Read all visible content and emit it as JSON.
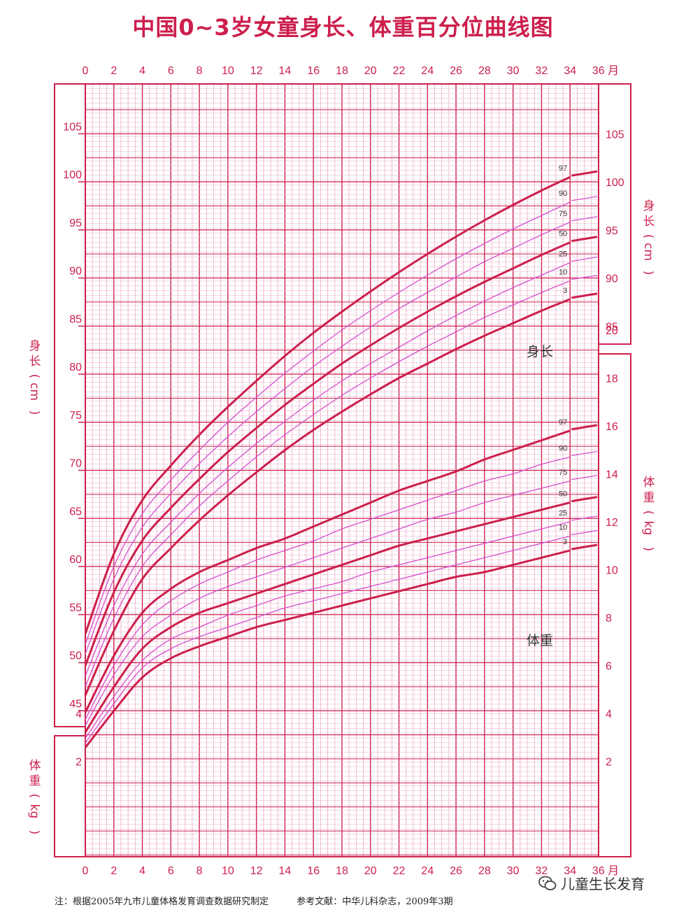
{
  "title": "中国0~3岁女童身长、体重百分位曲线图",
  "footnote": {
    "note": "注：根据2005年九市儿童体格发育调查数据研究制定",
    "reference": "参考文献：中华儿科杂志，2009年3期"
  },
  "watermark": {
    "text": "儿童生长发育",
    "icon": "wechat-icon"
  },
  "colors": {
    "main": "#cc1f4c",
    "thin": "#d54fcf",
    "grid": "#ecabc8",
    "text": "#cc1f4c"
  },
  "chart_data": {
    "type": "line",
    "x_axis": {
      "range": [
        0,
        36
      ],
      "ticks": [
        "0",
        "2",
        "4",
        "6",
        "8",
        "10",
        "12",
        "14",
        "16",
        "18",
        "20",
        "22",
        "24",
        "26",
        "28",
        "30",
        "32",
        "34",
        "36"
      ],
      "unit_label": "月"
    },
    "length_axis": {
      "label_chars": [
        "身",
        "长",
        "(",
        "cm",
        ")"
      ],
      "range": [
        42,
        110
      ],
      "ticks": [
        45,
        50,
        55,
        60,
        65,
        70,
        75,
        80,
        85,
        90,
        95,
        100,
        105
      ],
      "right_ticks": [
        85,
        90,
        95,
        100,
        105
      ]
    },
    "weight_axis": {
      "label_chars": [
        "体",
        "重",
        "(",
        "kg",
        ")"
      ],
      "range": [
        0,
        22
      ],
      "left_ticks": [
        2,
        4
      ],
      "right_ticks": [
        2,
        4,
        6,
        8,
        10,
        12,
        14,
        16,
        18,
        20
      ]
    },
    "length_label": "身长",
    "weight_label": "体重",
    "length_series": [
      {
        "name": "3",
        "x": [
          0,
          2,
          4,
          6,
          8,
          10,
          12,
          14,
          16,
          18,
          20,
          22,
          24,
          26,
          28,
          30,
          32,
          34
        ],
        "values": [
          46.6,
          53.3,
          58.7,
          61.9,
          64.8,
          67.4,
          69.8,
          72.1,
          74.2,
          76.1,
          77.9,
          79.6,
          81.1,
          82.6,
          84.0,
          85.3,
          86.6,
          87.8
        ]
      },
      {
        "name": "10",
        "x": [
          0,
          2,
          4,
          6,
          8,
          10,
          12,
          14,
          16,
          18,
          20,
          22,
          24,
          26,
          28,
          30,
          32,
          34
        ],
        "values": [
          47.5,
          54.6,
          60.0,
          63.3,
          66.3,
          68.9,
          71.4,
          73.7,
          75.8,
          77.8,
          79.6,
          81.3,
          82.9,
          84.4,
          85.9,
          87.2,
          88.5,
          89.7
        ]
      },
      {
        "name": "25",
        "x": [
          0,
          2,
          4,
          6,
          8,
          10,
          12,
          14,
          16,
          18,
          20,
          22,
          24,
          26,
          28,
          30,
          32,
          34
        ],
        "values": [
          48.6,
          55.9,
          61.3,
          64.6,
          67.6,
          70.3,
          72.8,
          75.1,
          77.3,
          79.3,
          81.1,
          82.8,
          84.5,
          86.1,
          87.6,
          89.0,
          90.3,
          91.6
        ]
      },
      {
        "name": "50",
        "x": [
          0,
          2,
          4,
          6,
          8,
          10,
          12,
          14,
          16,
          18,
          20,
          22,
          24,
          26,
          28,
          30,
          32,
          34
        ],
        "values": [
          49.7,
          57.3,
          62.7,
          66.1,
          69.1,
          71.9,
          74.4,
          76.8,
          79.0,
          81.1,
          83.0,
          84.8,
          86.5,
          88.1,
          89.6,
          91.0,
          92.4,
          93.7
        ]
      },
      {
        "name": "75",
        "x": [
          0,
          2,
          4,
          6,
          8,
          10,
          12,
          14,
          16,
          18,
          20,
          22,
          24,
          26,
          28,
          30,
          32,
          34
        ],
        "values": [
          50.9,
          58.7,
          64.1,
          67.6,
          70.7,
          73.5,
          76.1,
          78.5,
          80.8,
          82.9,
          84.9,
          86.8,
          88.5,
          90.1,
          91.7,
          93.1,
          94.5,
          95.8
        ]
      },
      {
        "name": "90",
        "x": [
          0,
          2,
          4,
          6,
          8,
          10,
          12,
          14,
          16,
          18,
          20,
          22,
          24,
          26,
          28,
          30,
          32,
          34
        ],
        "values": [
          51.9,
          60.0,
          65.5,
          69.0,
          72.1,
          75.0,
          77.6,
          80.1,
          82.4,
          84.6,
          86.6,
          88.5,
          90.3,
          92.0,
          93.6,
          95.1,
          96.5,
          97.9
        ]
      },
      {
        "name": "97",
        "x": [
          0,
          2,
          4,
          6,
          8,
          10,
          12,
          14,
          16,
          18,
          20,
          22,
          24,
          26,
          28,
          30,
          32,
          34
        ],
        "values": [
          53.0,
          61.3,
          66.9,
          70.5,
          73.7,
          76.6,
          79.3,
          81.9,
          84.3,
          86.5,
          88.6,
          90.6,
          92.5,
          94.3,
          96.0,
          97.6,
          99.1,
          100.5
        ]
      }
    ],
    "weight_series": [
      {
        "name": "3",
        "x": [
          0,
          2,
          4,
          6,
          8,
          10,
          12,
          14,
          16,
          18,
          20,
          22,
          24,
          26,
          28,
          30,
          32,
          34
        ],
        "values": [
          2.57,
          4.1,
          5.5,
          6.3,
          6.8,
          7.2,
          7.6,
          7.9,
          8.2,
          8.5,
          8.8,
          9.1,
          9.4,
          9.7,
          9.9,
          10.2,
          10.5,
          10.8
        ]
      },
      {
        "name": "10",
        "x": [
          0,
          2,
          4,
          6,
          8,
          10,
          12,
          14,
          16,
          18,
          20,
          22,
          24,
          26,
          28,
          30,
          32,
          34
        ],
        "values": [
          2.76,
          4.4,
          5.9,
          6.7,
          7.2,
          7.6,
          8.0,
          8.4,
          8.7,
          9.0,
          9.3,
          9.6,
          9.9,
          10.2,
          10.5,
          10.8,
          11.1,
          11.4
        ]
      },
      {
        "name": "25",
        "x": [
          0,
          2,
          4,
          6,
          8,
          10,
          12,
          14,
          16,
          18,
          20,
          22,
          24,
          26,
          28,
          30,
          32,
          34
        ],
        "values": [
          2.96,
          4.7,
          6.2,
          7.1,
          7.6,
          8.1,
          8.5,
          8.9,
          9.2,
          9.5,
          9.9,
          10.2,
          10.5,
          10.8,
          11.1,
          11.4,
          11.7,
          12.0
        ]
      },
      {
        "name": "50",
        "x": [
          0,
          2,
          4,
          6,
          8,
          10,
          12,
          14,
          16,
          18,
          20,
          22,
          24,
          26,
          28,
          30,
          32,
          34
        ],
        "values": [
          3.21,
          5.1,
          6.7,
          7.6,
          8.2,
          8.6,
          9.0,
          9.4,
          9.8,
          10.2,
          10.6,
          11.0,
          11.3,
          11.6,
          11.9,
          12.2,
          12.5,
          12.8
        ]
      },
      {
        "name": "75",
        "x": [
          0,
          2,
          4,
          6,
          8,
          10,
          12,
          14,
          16,
          18,
          20,
          22,
          24,
          26,
          28,
          30,
          32,
          34
        ],
        "values": [
          3.49,
          5.6,
          7.2,
          8.1,
          8.8,
          9.3,
          9.7,
          10.1,
          10.5,
          10.9,
          11.3,
          11.7,
          12.1,
          12.4,
          12.8,
          13.1,
          13.4,
          13.7
        ]
      },
      {
        "name": "90",
        "x": [
          0,
          2,
          4,
          6,
          8,
          10,
          12,
          14,
          16,
          18,
          20,
          22,
          24,
          26,
          28,
          30,
          32,
          34
        ],
        "values": [
          3.75,
          6.0,
          7.7,
          8.7,
          9.4,
          9.9,
          10.4,
          10.8,
          11.2,
          11.7,
          12.1,
          12.5,
          12.9,
          13.3,
          13.7,
          14.0,
          14.4,
          14.7
        ]
      },
      {
        "name": "97",
        "x": [
          0,
          2,
          4,
          6,
          8,
          10,
          12,
          14,
          16,
          18,
          20,
          22,
          24,
          26,
          28,
          30,
          32,
          34
        ],
        "values": [
          4.04,
          6.4,
          8.2,
          9.2,
          9.9,
          10.4,
          10.9,
          11.3,
          11.8,
          12.3,
          12.8,
          13.3,
          13.7,
          14.1,
          14.6,
          15.0,
          15.4,
          15.8
        ]
      }
    ]
  }
}
